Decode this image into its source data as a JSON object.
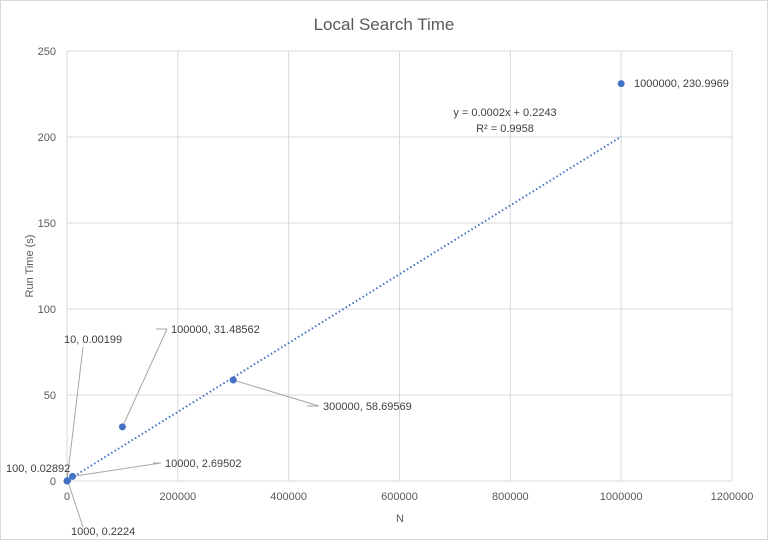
{
  "chart_data": {
    "type": "scatter",
    "title": "Local Search Time",
    "xlabel": "N",
    "ylabel": "Run Time (s)",
    "xlim": [
      0,
      1200000
    ],
    "ylim": [
      0,
      250
    ],
    "xticks": [
      "0",
      "200000",
      "400000",
      "600000",
      "800000",
      "1000000",
      "1200000"
    ],
    "yticks": [
      "0",
      "50",
      "100",
      "150",
      "200",
      "250"
    ],
    "grid": true,
    "points": [
      {
        "x": 10,
        "y": 0.00199,
        "label": "10, 0.00199"
      },
      {
        "x": 100,
        "y": 0.02892,
        "label": "100, 0.02892"
      },
      {
        "x": 1000,
        "y": 0.2224,
        "label": "1000, 0.2224"
      },
      {
        "x": 10000,
        "y": 2.69502,
        "label": "10000, 2.69502"
      },
      {
        "x": 100000,
        "y": 31.48562,
        "label": "100000, 31.48562"
      },
      {
        "x": 300000,
        "y": 58.69569,
        "label": "300000, 58.69569"
      },
      {
        "x": 1000000,
        "y": 230.9969,
        "label": "1000000, 230.9969"
      }
    ],
    "trendline": {
      "type": "linear",
      "slope": 0.0002,
      "intercept": 0.2243,
      "equation": "y = 0.0002x + 0.2243",
      "r_squared": "R² = 0.9958"
    }
  }
}
